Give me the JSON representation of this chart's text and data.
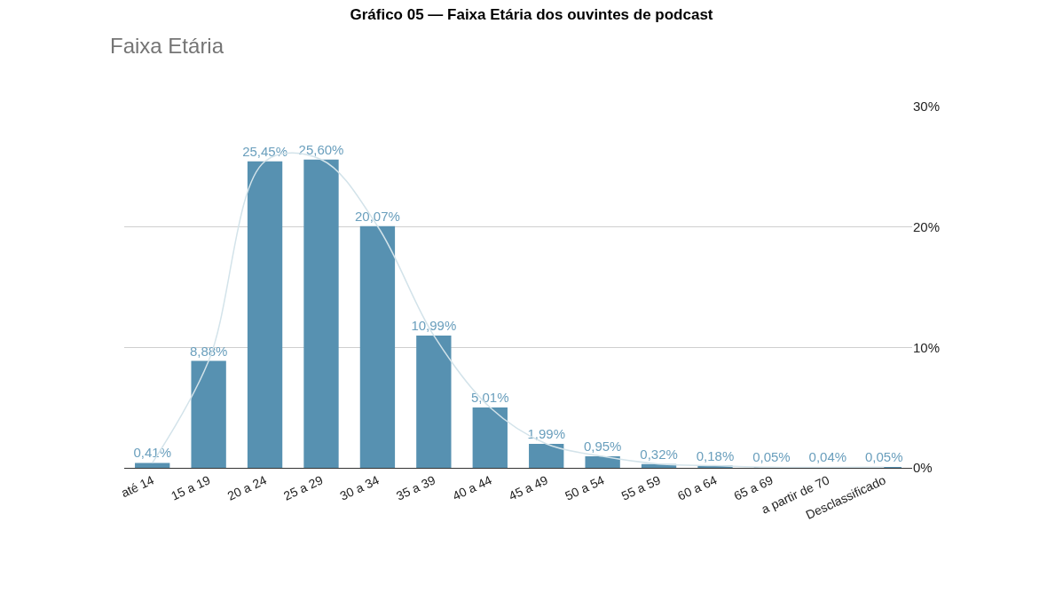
{
  "chart_data": {
    "type": "bar",
    "title": "Gráfico 05 — Faixa Etária dos ouvintes de podcast",
    "subtitle": "Faixa Etária",
    "categories": [
      "até 14",
      "15 a 19",
      "20 a 24",
      "25 a 29",
      "30 a 34",
      "35 a 39",
      "40 a 44",
      "45 a 49",
      "50 a 54",
      "55 a 59",
      "60 a 64",
      "65 a 69",
      "a partir de 70",
      "Desclassificado"
    ],
    "series": [
      {
        "color": "#5791b1",
        "values": [
          0.41,
          8.88,
          25.45,
          25.6,
          20.07,
          10.99,
          5.01,
          1.99,
          0.95,
          0.32,
          0.18,
          0.05,
          0.04,
          0.05
        ],
        "value_labels": [
          "0,41%",
          "8,88%",
          "25,45%",
          "25,60%",
          "20,07%",
          "10,99%",
          "5,01%",
          "1,99%",
          "0,95%",
          "0,32%",
          "0,18%",
          "0,05%",
          "0,04%",
          "0,05%"
        ]
      },
      {
        "type": "line",
        "color": "#d3e3ea",
        "values": [
          0.41,
          8.88,
          25.45,
          25.6,
          20.07,
          10.99,
          5.01,
          1.99,
          0.95,
          0.32,
          0.18,
          0.05,
          0.04,
          0.05
        ]
      }
    ],
    "ylim": [
      0,
      30
    ],
    "yticks": [
      {
        "value": 0,
        "label": "0%"
      },
      {
        "value": 10,
        "label": "10%"
      },
      {
        "value": 20,
        "label": "20%"
      },
      {
        "value": 30,
        "label": "30%"
      }
    ],
    "grid": "y"
  }
}
